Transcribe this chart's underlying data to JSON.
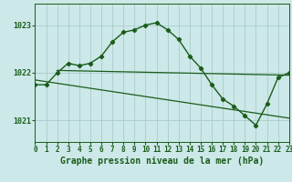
{
  "title": "Graphe pression niveau de la mer (hPa)",
  "bg_color": "#cce8e8",
  "grid_color": "#aacccc",
  "line_color": "#1a5c1a",
  "xlim": [
    0,
    23
  ],
  "ylim": [
    1020.55,
    1023.45
  ],
  "yticks": [
    1021,
    1022,
    1023
  ],
  "xticks": [
    0,
    1,
    2,
    3,
    4,
    5,
    6,
    7,
    8,
    9,
    10,
    11,
    12,
    13,
    14,
    15,
    16,
    17,
    18,
    19,
    20,
    21,
    22,
    23
  ],
  "series1_x": [
    0,
    1,
    2,
    3,
    4,
    5,
    6,
    7,
    8,
    9,
    10,
    11,
    12,
    13,
    14,
    15,
    16,
    17,
    18,
    19,
    20,
    21,
    22,
    23
  ],
  "series1_y": [
    1021.75,
    1021.75,
    1022.0,
    1022.2,
    1022.15,
    1022.2,
    1022.35,
    1022.65,
    1022.85,
    1022.9,
    1023.0,
    1023.05,
    1022.9,
    1022.7,
    1022.35,
    1022.1,
    1021.75,
    1021.45,
    1021.3,
    1021.1,
    1020.9,
    1021.35,
    1021.9,
    1022.0
  ],
  "trend1_x": [
    0,
    23
  ],
  "trend1_y": [
    1021.85,
    1021.05
  ],
  "trend2_x": [
    2,
    23
  ],
  "trend2_y": [
    1022.05,
    1021.95
  ],
  "title_fontsize": 7,
  "tick_fontsize": 5.5
}
